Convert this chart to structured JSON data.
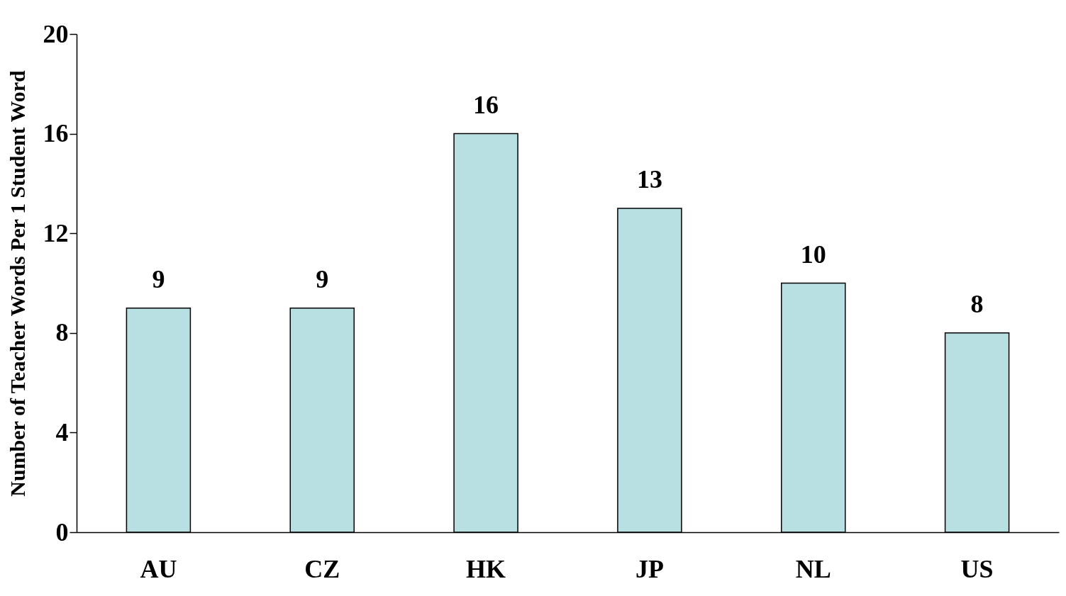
{
  "chart_data": {
    "type": "bar",
    "ylabel": "Number of Teacher Words Per 1 Student Word",
    "categories": [
      "AU",
      "CZ",
      "HK",
      "JP",
      "NL",
      "US"
    ],
    "values": [
      9,
      9,
      16,
      13,
      10,
      8
    ],
    "color": "#b8dfe2",
    "ylim": [
      0,
      20
    ],
    "yticks": [
      0,
      4,
      8,
      12,
      16,
      20
    ],
    "grid": false,
    "data_labels": true
  }
}
